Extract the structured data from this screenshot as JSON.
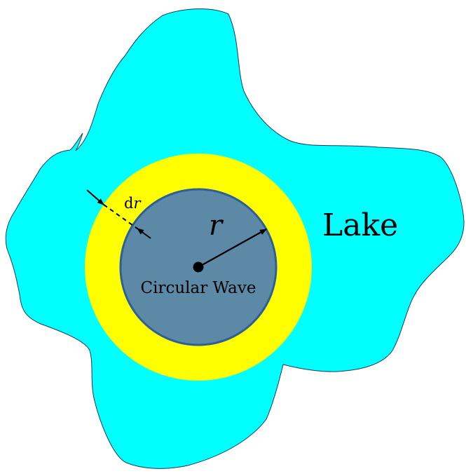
{
  "labels": {
    "lake": "Lake",
    "wave": "Circular Wave",
    "radius": "r",
    "increment_prefix": "d",
    "increment_var": "r"
  },
  "colors": {
    "lake_fill": "#00FFFF",
    "ring_fill": "#FFFF00",
    "wave_fill": "#5B89A6",
    "wave_stroke": "#2F5F9A",
    "outline": "#000000"
  }
}
